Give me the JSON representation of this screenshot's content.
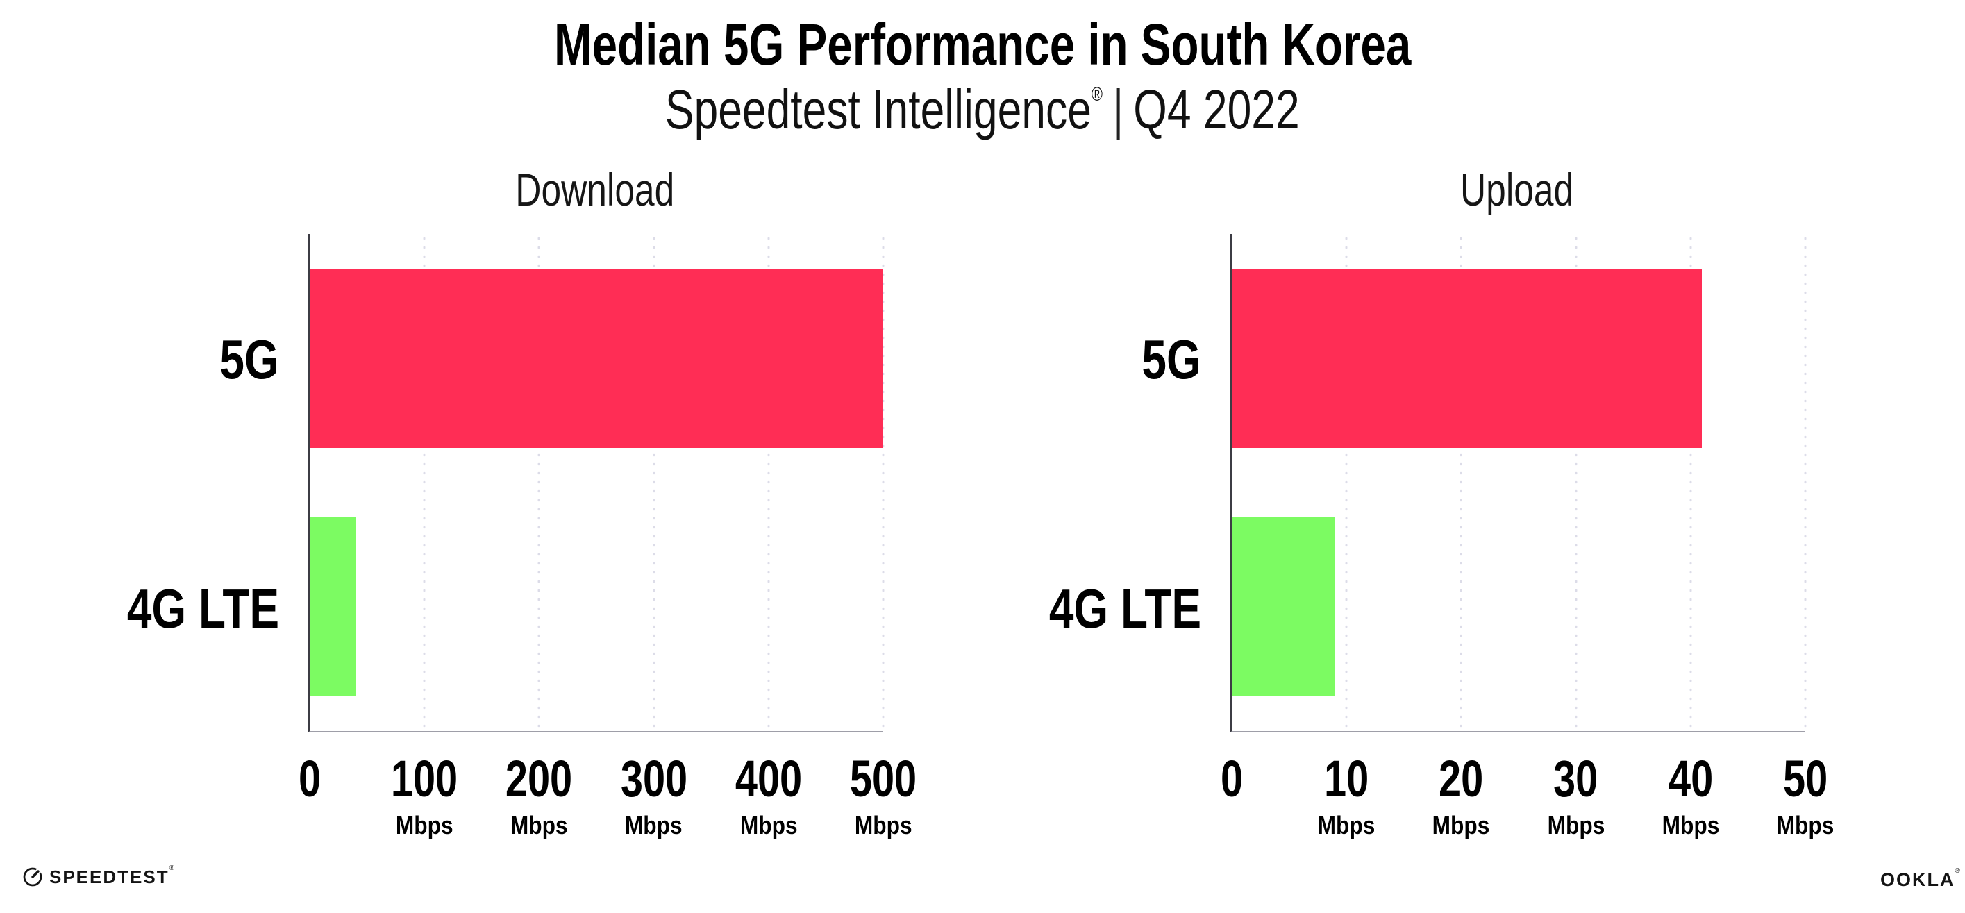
{
  "header": {
    "title": "Median 5G Performance in South Korea",
    "subtitle_brand": "Speedtest Intelligence",
    "subtitle_reg": "®",
    "subtitle_sep": "|",
    "subtitle_period": "Q4 2022"
  },
  "colors": {
    "bar_5g": "#FF2D55",
    "bar_4g_lte": "#7CFB62",
    "gridline": "#DCDCE8",
    "y_axis_line": "#3C3C44",
    "x_axis_line": "#9EA0A8"
  },
  "chart_data": [
    {
      "type": "bar",
      "orientation": "horizontal",
      "title": "Download",
      "categories": [
        "5G",
        "4G LTE"
      ],
      "values": [
        500,
        40
      ],
      "unit": "Mbps",
      "xlim": [
        0,
        500
      ],
      "xticks": [
        0,
        100,
        200,
        300,
        400,
        500
      ],
      "grid": "dotted vertical gridlines",
      "legend": "none",
      "bar_colors": [
        "#FF2D55",
        "#7CFB62"
      ]
    },
    {
      "type": "bar",
      "orientation": "horizontal",
      "title": "Upload",
      "categories": [
        "5G",
        "4G LTE"
      ],
      "values": [
        41,
        9
      ],
      "unit": "Mbps",
      "xlim": [
        0,
        50
      ],
      "xticks": [
        0,
        10,
        20,
        30,
        40,
        50
      ],
      "grid": "dotted vertical gridlines",
      "legend": "none",
      "bar_colors": [
        "#FF2D55",
        "#7CFB62"
      ]
    }
  ],
  "footer": {
    "speedtest_logo_text": "SPEEDTEST",
    "speedtest_reg": "®",
    "ookla_logo_text": "OOKLA",
    "ookla_reg": "®"
  }
}
